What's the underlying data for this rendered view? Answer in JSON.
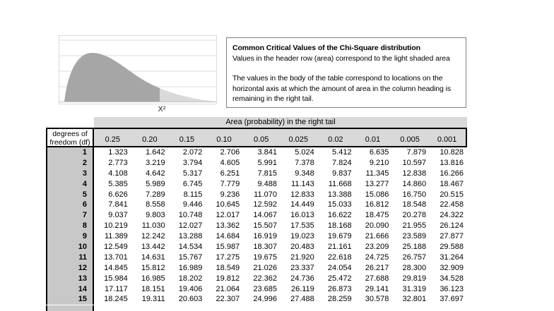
{
  "chart": {
    "xlabel": "X²",
    "dark_area_color": "#a6a6a6",
    "light_tail_color": "#d9d9d9",
    "gridline_color": "#dedede",
    "description": "right-skewed chi-square density; body shaded dark gray, right tail shaded light gray"
  },
  "info_box": {
    "title": "Common Critical Values of the Chi-Square distribution",
    "subtitle": "Values in the header row (area) correspond to the light shaded area",
    "paragraph": "The values in the body of the table correspond to locations on the horizontal axis at which the amount of area in the column heading is remaining in the right tail."
  },
  "table": {
    "area_header": "Area (probability) in the right tail",
    "df_header_line1": "degrees of",
    "df_header_line2": "freedom (df)",
    "columns": [
      "0.25",
      "0.20",
      "0.15",
      "0.10",
      "0.05",
      "0.025",
      "0.02",
      "0.01",
      "0.005",
      "0.001"
    ],
    "rows": [
      {
        "df": "1",
        "values": [
          "1.323",
          "1.642",
          "2.072",
          "2.706",
          "3.841",
          "5.024",
          "5.412",
          "6.635",
          "7.879",
          "10.828"
        ]
      },
      {
        "df": "2",
        "values": [
          "2.773",
          "3.219",
          "3.794",
          "4.605",
          "5.991",
          "7.378",
          "7.824",
          "9.210",
          "10.597",
          "13.816"
        ]
      },
      {
        "df": "3",
        "values": [
          "4.108",
          "4.642",
          "5.317",
          "6.251",
          "7.815",
          "9.348",
          "9.837",
          "11.345",
          "12.838",
          "16.266"
        ]
      },
      {
        "df": "4",
        "values": [
          "5.385",
          "5.989",
          "6.745",
          "7.779",
          "9.488",
          "11.143",
          "11.668",
          "13.277",
          "14.860",
          "18.467"
        ]
      },
      {
        "df": "5",
        "values": [
          "6.626",
          "7.289",
          "8.115",
          "9.236",
          "11.070",
          "12.833",
          "13.388",
          "15.086",
          "16.750",
          "20.515"
        ]
      },
      {
        "df": "6",
        "values": [
          "7.841",
          "8.558",
          "9.446",
          "10.645",
          "12.592",
          "14.449",
          "15.033",
          "16.812",
          "18.548",
          "22.458"
        ]
      },
      {
        "df": "7",
        "values": [
          "9.037",
          "9.803",
          "10.748",
          "12.017",
          "14.067",
          "16.013",
          "16.622",
          "18.475",
          "20.278",
          "24.322"
        ]
      },
      {
        "df": "8",
        "values": [
          "10.219",
          "11.030",
          "12.027",
          "13.362",
          "15.507",
          "17.535",
          "18.168",
          "20.090",
          "21.955",
          "26.124"
        ]
      },
      {
        "df": "9",
        "values": [
          "11.389",
          "12.242",
          "13.288",
          "14.684",
          "16.919",
          "19.023",
          "19.679",
          "21.666",
          "23.589",
          "27.877"
        ]
      },
      {
        "df": "10",
        "values": [
          "12.549",
          "13.442",
          "14.534",
          "15.987",
          "18.307",
          "20.483",
          "21.161",
          "23.209",
          "25.188",
          "29.588"
        ]
      },
      {
        "df": "11",
        "values": [
          "13.701",
          "14.631",
          "15.767",
          "17.275",
          "19.675",
          "21.920",
          "22.618",
          "24.725",
          "26.757",
          "31.264"
        ]
      },
      {
        "df": "12",
        "values": [
          "14.845",
          "15.812",
          "16.989",
          "18.549",
          "21.026",
          "23.337",
          "24.054",
          "26.217",
          "28.300",
          "32.909"
        ]
      },
      {
        "df": "13",
        "values": [
          "15.984",
          "16.985",
          "18.202",
          "19.812",
          "22.362",
          "24.736",
          "25.472",
          "27.688",
          "29.819",
          "34.528"
        ]
      },
      {
        "df": "14",
        "values": [
          "17.117",
          "18.151",
          "19.406",
          "21.064",
          "23.685",
          "26.119",
          "26.873",
          "29.141",
          "31.319",
          "36.123"
        ]
      },
      {
        "df": "15",
        "values": [
          "18.245",
          "19.311",
          "20.603",
          "22.307",
          "24.996",
          "27.488",
          "28.259",
          "30.578",
          "32.801",
          "37.697"
        ]
      }
    ]
  }
}
